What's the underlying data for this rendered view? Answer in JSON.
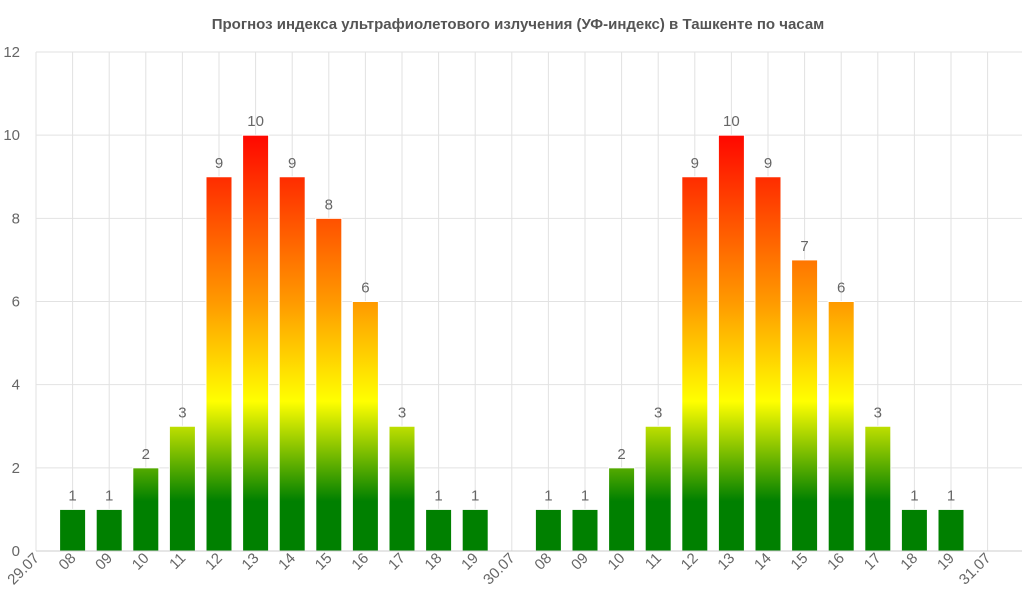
{
  "chart_data": {
    "type": "bar",
    "title": "Прогноз индекса ультрафиолетового излучения (УФ-индекс) в Ташкенте по часам",
    "xlabel": "",
    "ylabel": "",
    "ylim": [
      0,
      12
    ],
    "yticks": [
      0,
      2,
      4,
      6,
      8,
      10,
      12
    ],
    "grid": true,
    "legend": "none",
    "categories": [
      "29.07",
      "08",
      "09",
      "10",
      "11",
      "12",
      "13",
      "14",
      "15",
      "16",
      "17",
      "18",
      "19",
      "30.07",
      "08",
      "09",
      "10",
      "11",
      "12",
      "13",
      "14",
      "15",
      "16",
      "17",
      "18",
      "19",
      "31.07"
    ],
    "values": [
      null,
      1,
      1,
      2,
      3,
      9,
      10,
      9,
      8,
      6,
      3,
      1,
      1,
      null,
      1,
      1,
      2,
      3,
      9,
      10,
      9,
      7,
      6,
      3,
      1,
      1,
      null
    ],
    "color_scale": {
      "low": "#008000",
      "mid": "#ffff00",
      "orange": "#ff9900",
      "high": "#ff0000"
    }
  }
}
